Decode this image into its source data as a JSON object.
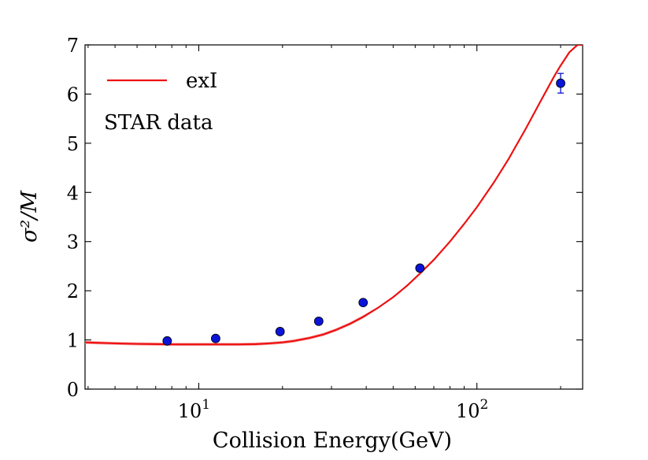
{
  "chart_data": {
    "type": "scatter",
    "title": "",
    "xlabel": "Collision Energy(GeV)",
    "ylabel": "σ²/M",
    "xscale": "log",
    "xlim": [
      3.9,
      240
    ],
    "ylim": [
      0,
      7
    ],
    "yticks": [
      0,
      1,
      2,
      3,
      4,
      5,
      6,
      7
    ],
    "xticks_major": [
      {
        "value": 10,
        "base": "10",
        "exp": "1"
      },
      {
        "value": 100,
        "base": "10",
        "exp": "2"
      }
    ],
    "legend": {
      "placement": "top-left",
      "line_label": "exI",
      "text_entry": "STAR data"
    },
    "series": [
      {
        "name": "exI",
        "kind": "line",
        "color": "#ee1111",
        "band_color": "#f4a0a0",
        "x": [
          3.9,
          5,
          6,
          7,
          8,
          9,
          10,
          12,
          14,
          16,
          18,
          20,
          22,
          25,
          28,
          31,
          35,
          39,
          44,
          50,
          56,
          62.4,
          70,
          80,
          90,
          100,
          115,
          130,
          150,
          170,
          190,
          200,
          215,
          230,
          240
        ],
        "y": [
          0.95,
          0.93,
          0.92,
          0.915,
          0.91,
          0.91,
          0.91,
          0.91,
          0.91,
          0.915,
          0.93,
          0.95,
          0.98,
          1.04,
          1.11,
          1.2,
          1.33,
          1.47,
          1.65,
          1.87,
          2.1,
          2.35,
          2.63,
          3.0,
          3.36,
          3.7,
          4.2,
          4.68,
          5.3,
          5.87,
          6.37,
          6.58,
          6.85,
          7.0,
          7.0
        ]
      },
      {
        "name": "STAR data",
        "kind": "points",
        "color": "#0a14d8",
        "x": [
          7.7,
          11.5,
          19.6,
          27,
          39,
          62.4,
          200
        ],
        "y": [
          0.98,
          1.03,
          1.17,
          1.38,
          1.76,
          2.46,
          6.22
        ],
        "yerr": [
          0,
          0,
          0,
          0,
          0,
          0,
          0.2
        ]
      }
    ]
  }
}
